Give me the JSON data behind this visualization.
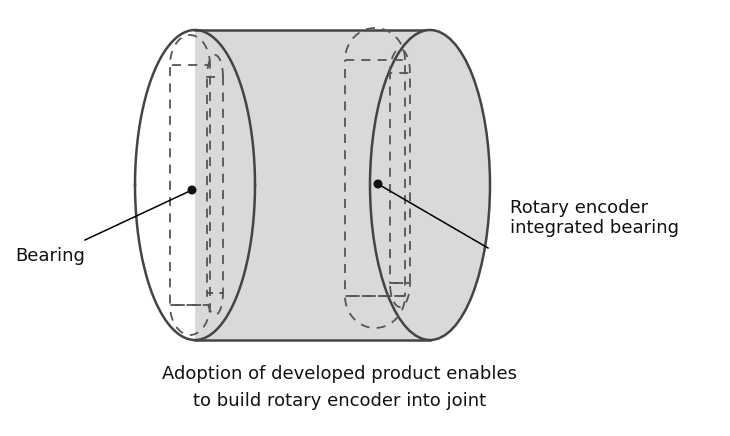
{
  "fig_width": 7.3,
  "fig_height": 4.36,
  "bg_color": "#ffffff",
  "cylinder_fill": "#d9d9d9",
  "cylinder_edge": "#444444",
  "dashed_color": "#555555",
  "dot_color": "#111111",
  "text_color": "#111111",
  "label_bearing": "Bearing",
  "label_encoder": "Rotary encoder\nintegrated bearing",
  "label_bottom1": "Adoption of developed product enables",
  "label_bottom2": "to build rotary encoder into joint",
  "font_size_labels": 13,
  "font_size_bottom": 13
}
